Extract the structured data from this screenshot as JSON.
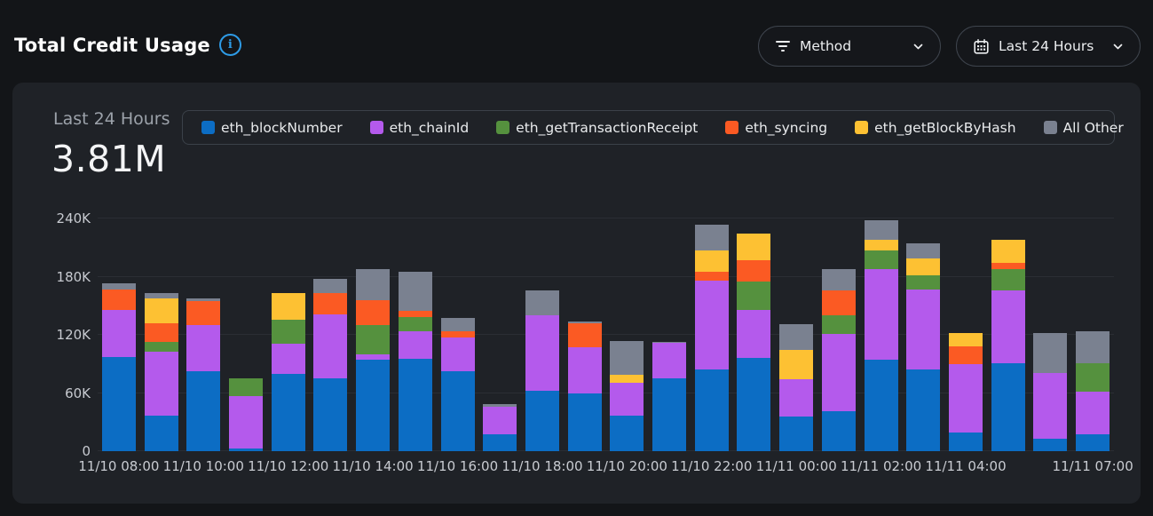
{
  "header": {
    "title": "Total Credit Usage",
    "method_filter": {
      "label": "Method"
    },
    "time_range": {
      "label": "Last 24 Hours"
    }
  },
  "panel": {
    "summary_label": "Last 24 Hours",
    "summary_value": "3.81M"
  },
  "colors": {
    "page_bg": "#131518",
    "panel_bg": "#1f2227",
    "gridline": "#2b2e34",
    "axis_text": "#c7cad0",
    "accent_info": "#2e9be6",
    "blue": "#0c6dc4",
    "purple": "#b45aec",
    "green": "#55913e",
    "orange": "#fb5a23",
    "yellow": "#fdc133",
    "gray": "#7a8190"
  },
  "chart_data": {
    "type": "bar",
    "stacked": true,
    "title": "Total Credit Usage",
    "subtitle": "Last 24 Hours",
    "total": "3.81M",
    "values_unit": "thousands of credits (K)",
    "bar_count": 24,
    "ylim": [
      0,
      245
    ],
    "ytick_values": [
      0,
      60,
      120,
      180,
      240
    ],
    "ytick_labels": [
      "0",
      "60K",
      "120K",
      "180K",
      "240K"
    ],
    "grid": true,
    "legend_position": "top",
    "xticks": [
      {
        "slot": 0,
        "label": "11/10 08:00"
      },
      {
        "slot": 2,
        "label": "11/10 10:00"
      },
      {
        "slot": 4,
        "label": "11/10 12:00"
      },
      {
        "slot": 6,
        "label": "11/10 14:00"
      },
      {
        "slot": 8,
        "label": "11/10 16:00"
      },
      {
        "slot": 10,
        "label": "11/10 18:00"
      },
      {
        "slot": 12,
        "label": "11/10 20:00"
      },
      {
        "slot": 14,
        "label": "11/10 22:00"
      },
      {
        "slot": 16,
        "label": "11/11 00:00"
      },
      {
        "slot": 18,
        "label": "11/11 02:00"
      },
      {
        "slot": 20,
        "label": "11/11 04:00"
      },
      {
        "slot": 23,
        "label": "11/11 07:00"
      }
    ],
    "series": [
      {
        "name": "eth_blockNumber",
        "color": "#0c6dc4",
        "values": [
          97,
          37,
          82,
          3,
          80,
          75,
          94,
          95,
          82,
          17,
          62,
          60,
          37,
          75,
          84,
          96,
          36,
          41,
          94,
          84,
          19,
          91,
          13,
          17
        ]
      },
      {
        "name": "eth_chainId",
        "color": "#b45aec",
        "values": [
          49,
          66,
          48,
          54,
          31,
          66,
          6,
          29,
          35,
          29,
          78,
          47,
          34,
          37,
          92,
          50,
          38,
          80,
          94,
          83,
          71,
          75,
          68,
          44
        ]
      },
      {
        "name": "eth_getTransactionReceipt",
        "color": "#55913e",
        "values": [
          0,
          10,
          0,
          18,
          25,
          0,
          30,
          14,
          0,
          0,
          0,
          0,
          0,
          0,
          0,
          29,
          0,
          19,
          19,
          14,
          0,
          22,
          0,
          30
        ]
      },
      {
        "name": "eth_syncing",
        "color": "#fb5a23",
        "values": [
          21,
          19,
          25,
          0,
          0,
          22,
          26,
          7,
          7,
          0,
          0,
          25,
          0,
          0,
          9,
          22,
          0,
          26,
          0,
          0,
          18,
          6,
          0,
          0
        ]
      },
      {
        "name": "eth_getBlockByHash",
        "color": "#fdc133",
        "values": [
          0,
          26,
          0,
          0,
          27,
          0,
          0,
          0,
          0,
          0,
          0,
          0,
          8,
          0,
          22,
          27,
          30,
          0,
          11,
          18,
          14,
          24,
          0,
          0
        ]
      },
      {
        "name": "All Other",
        "color": "#7a8190",
        "values": [
          6,
          5,
          3,
          0,
          0,
          15,
          32,
          40,
          13,
          3,
          26,
          2,
          35,
          1,
          27,
          0,
          27,
          22,
          20,
          15,
          0,
          0,
          41,
          33
        ]
      }
    ]
  }
}
